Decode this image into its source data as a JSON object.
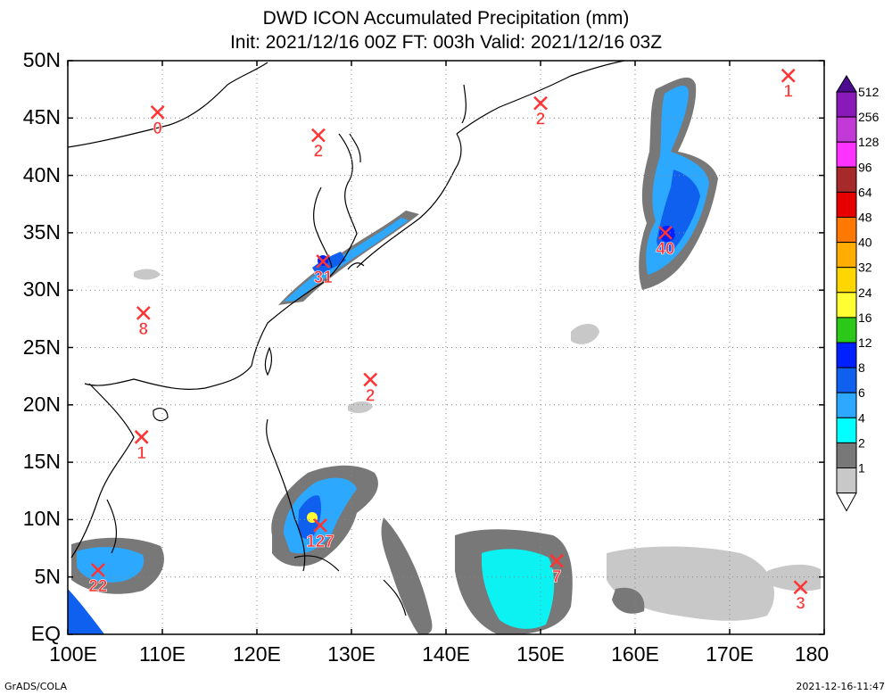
{
  "title_line1": "DWD ICON Accumulated Precipitation (mm)",
  "title_line2": "Init: 2021/12/16 00Z  FT: 003h  Valid: 2021/12/16 03Z",
  "lat_labels": [
    "50N",
    "45N",
    "40N",
    "35N",
    "30N",
    "25N",
    "20N",
    "15N",
    "10N",
    "5N",
    "EQ"
  ],
  "lon_labels": [
    "100E",
    "110E",
    "120E",
    "130E",
    "140E",
    "150E",
    "160E",
    "170E",
    "180"
  ],
  "colorbar": {
    "levels": [
      "512",
      "256",
      "128",
      "96",
      "64",
      "48",
      "40",
      "32",
      "24",
      "16",
      "12",
      "8",
      "6",
      "4",
      "2",
      "1"
    ],
    "colors": [
      "#4c0a91",
      "#8a1ab8",
      "#c23ad6",
      "#ff33ff",
      "#a62a2a",
      "#e60000",
      "#ff7800",
      "#ffad00",
      "#ffd700",
      "#ffff33",
      "#2cc819",
      "#0020ff",
      "#1060f0",
      "#2ca8ff",
      "#00ffff",
      "#787878",
      "#c8c8c8"
    ]
  },
  "markers": [
    {
      "value": "0",
      "lon": 109.5,
      "lat": 45.5
    },
    {
      "value": "2",
      "lon": 126.5,
      "lat": 43.5
    },
    {
      "value": "2",
      "lon": 150.0,
      "lat": 46.3
    },
    {
      "value": "1",
      "lon": 176.2,
      "lat": 48.7
    },
    {
      "value": "40",
      "lon": 163.2,
      "lat": 35.0
    },
    {
      "value": "31",
      "lon": 127.0,
      "lat": 32.5
    },
    {
      "value": "8",
      "lon": 108.0,
      "lat": 28.0
    },
    {
      "value": "2",
      "lon": 132.0,
      "lat": 22.2
    },
    {
      "value": "1",
      "lon": 107.8,
      "lat": 17.2
    },
    {
      "value": "127",
      "lon": 126.7,
      "lat": 9.5
    },
    {
      "value": "7",
      "lon": 151.7,
      "lat": 6.4
    },
    {
      "value": "22",
      "lon": 103.2,
      "lat": 5.6
    },
    {
      "value": "3",
      "lon": 177.5,
      "lat": 4.1
    }
  ],
  "footer_left": "GrADS/COLA",
  "footer_right": "2021-12-16-11:47"
}
